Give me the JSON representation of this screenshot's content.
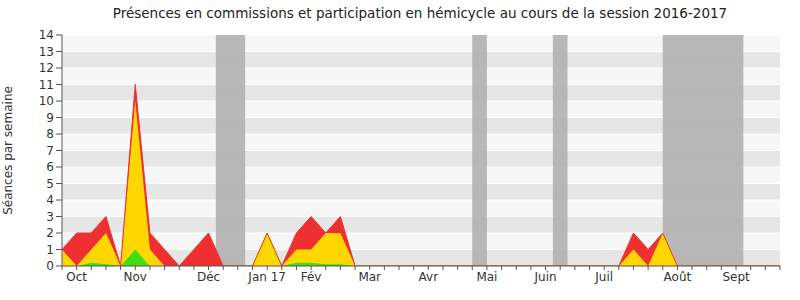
{
  "chart_data": {
    "type": "area",
    "title": "Présences en commissions et participation en hémicycle au cours de la session 2016-2017",
    "ylabel": "Séances par semaine",
    "stacked": true,
    "grid": true,
    "categories": [
      null,
      "Oct",
      null,
      null,
      null,
      "Nov",
      null,
      null,
      null,
      null,
      "Déc",
      null,
      null,
      null,
      "Jan 17",
      null,
      null,
      "Fév",
      null,
      null,
      null,
      "Mar",
      null,
      null,
      null,
      "Avr",
      null,
      null,
      null,
      "Mai",
      null,
      null,
      null,
      "Juin",
      null,
      null,
      null,
      "Juil",
      null,
      null,
      null,
      null,
      "Août",
      null,
      null,
      null,
      "Sept",
      null,
      null,
      null
    ],
    "ylim": [
      0,
      14
    ],
    "yticks": [
      0,
      1,
      2,
      3,
      4,
      5,
      6,
      7,
      8,
      9,
      10,
      11,
      12,
      13,
      14
    ],
    "shaded_ranges": [
      [
        10.5,
        12.5
      ],
      [
        28,
        29
      ],
      [
        33.5,
        34.5
      ],
      [
        41,
        46.5
      ]
    ],
    "series": [
      {
        "color": "#44dd11",
        "values": [
          0,
          0,
          0.2,
          0.1,
          0,
          1,
          0,
          0,
          0,
          0,
          0,
          0,
          0,
          0,
          0,
          0,
          0.2,
          0.2,
          0.1,
          0.1,
          0,
          0,
          0,
          0,
          0,
          0,
          0,
          0,
          0,
          0,
          0,
          0,
          0,
          0,
          0,
          0,
          0,
          0,
          0,
          0,
          0,
          0,
          0,
          0,
          0,
          0,
          0,
          0,
          0,
          0
        ]
      },
      {
        "color": "#ffd700",
        "values": [
          1,
          0,
          0.8,
          1.9,
          0,
          9,
          1,
          0,
          0,
          0,
          0,
          0,
          0,
          0,
          2,
          0,
          0.8,
          0.8,
          1.9,
          1.9,
          0,
          0,
          0,
          0,
          0,
          0,
          0,
          0,
          0,
          0,
          0,
          0,
          0,
          0,
          0,
          0,
          0,
          0,
          0,
          1,
          0,
          2,
          0,
          0,
          0,
          0,
          0,
          0,
          0,
          0
        ]
      },
      {
        "color": "#f03030",
        "values": [
          0,
          2,
          1,
          1,
          0,
          1,
          1,
          1,
          0,
          1,
          2,
          0,
          0,
          0,
          0,
          0,
          1,
          2,
          0,
          1,
          0,
          0,
          0,
          0,
          0,
          0,
          0,
          0,
          0,
          0,
          0,
          0,
          0,
          0,
          0,
          0,
          0,
          0,
          0,
          1,
          1,
          0,
          0,
          0,
          0,
          0,
          0,
          0,
          0,
          0
        ]
      }
    ]
  }
}
